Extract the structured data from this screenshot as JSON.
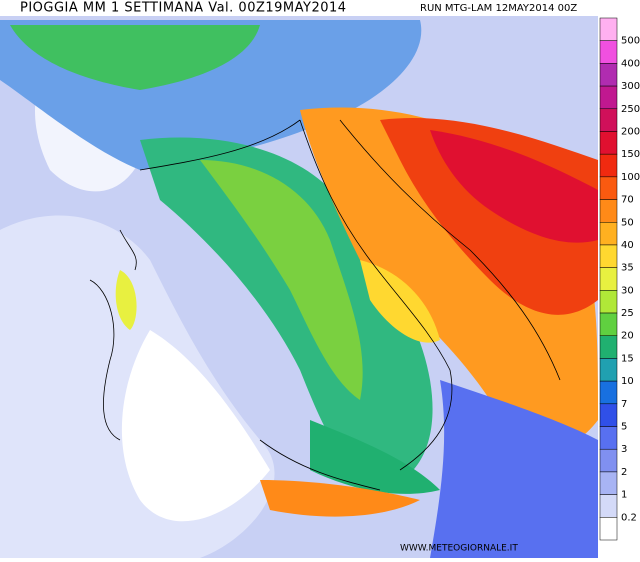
{
  "header": {
    "title": "PIOGGIA MM 1 SETTIMANA Val. 00Z19MAY2014",
    "run": "RUN MTG-LAM 12MAY2014 00Z"
  },
  "legend": {
    "levels": [
      500,
      400,
      300,
      250,
      200,
      150,
      100,
      70,
      50,
      40,
      35,
      30,
      25,
      20,
      15,
      10,
      7,
      5,
      3,
      2,
      1,
      0.2
    ],
    "colors": [
      "#ffb0f0",
      "#f050e0",
      "#b02cb0",
      "#c01890",
      "#d0105a",
      "#e01030",
      "#f02a10",
      "#fa5a10",
      "#ff8a18",
      "#ffb020",
      "#ffd830",
      "#e8f040",
      "#b0e838",
      "#60d040",
      "#20b070",
      "#20a0b0",
      "#1870e0",
      "#3050e8",
      "#5870f0",
      "#8090f0",
      "#a8b4f4",
      "#d4daf8",
      "#ffffff"
    ]
  },
  "watermark": "WWW.METEOGIORNALE.IT"
}
